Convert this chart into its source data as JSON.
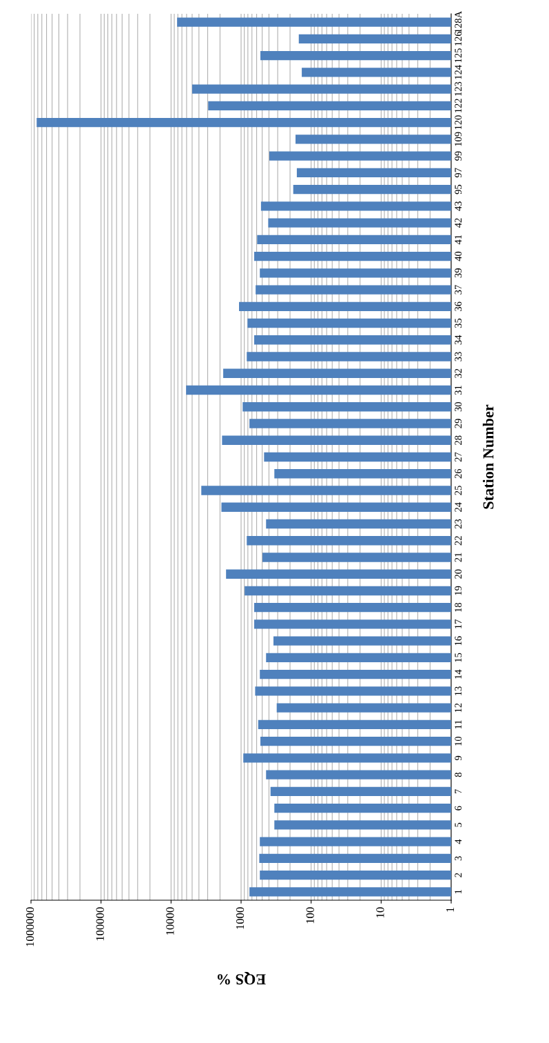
{
  "chart_data": {
    "type": "bar",
    "orientation": "horizontal",
    "log": "x",
    "xlabel": "EQS %",
    "ylabel": "Station Number",
    "categories": [
      "128A",
      "126",
      "125",
      "124",
      "123",
      "122",
      "120",
      "109",
      "99",
      "97",
      "95",
      "43",
      "42",
      "41",
      "40",
      "39",
      "37",
      "36",
      "35",
      "34",
      "33",
      "32",
      "31",
      "30",
      "29",
      "28",
      "27",
      "26",
      "25",
      "24",
      "23",
      "22",
      "21",
      "20",
      "19",
      "18",
      "17",
      "16",
      "15",
      "14",
      "13",
      "12",
      "11",
      "10",
      "9",
      "8",
      "7",
      "6",
      "5",
      "4",
      "3",
      "2",
      "1"
    ],
    "values": [
      8200,
      150,
      530,
      136,
      5000,
      2950,
      830000,
      167,
      395,
      160,
      180,
      520,
      410,
      590,
      650,
      540,
      620,
      1070,
      810,
      650,
      830,
      1800,
      6100,
      950,
      760,
      1870,
      470,
      335,
      3700,
      1910,
      440,
      830,
      495,
      1640,
      890,
      650,
      650,
      345,
      440,
      540,
      630,
      310,
      570,
      530,
      930,
      440,
      380,
      335,
      335,
      540,
      550,
      540,
      760
    ],
    "color": "#4f81bd",
    "xlim": [
      1000000,
      1
    ],
    "xticks": [
      1,
      10,
      100,
      1000,
      10000,
      100000,
      1000000
    ],
    "grid": "x",
    "legend": false
  }
}
